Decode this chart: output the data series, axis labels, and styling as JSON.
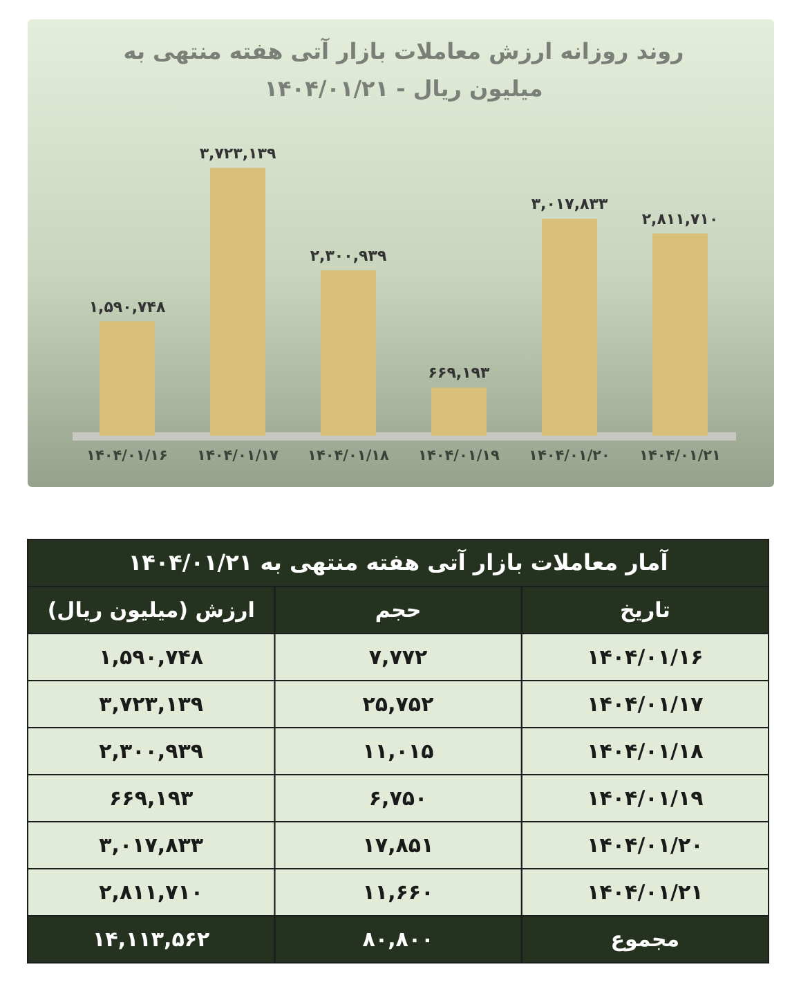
{
  "chart_data": [
    {
      "type": "bar",
      "title": "روند روزانه ارزش معاملات بازار آتی هفته منتهی به ۱۴۰۴/۰۱/۲۱ - میلیون ریال",
      "categories": [
        "۱۴۰۴/۰۱/۱۶",
        "۱۴۰۴/۰۱/۱۷",
        "۱۴۰۴/۰۱/۱۸",
        "۱۴۰۴/۰۱/۱۹",
        "۱۴۰۴/۰۱/۲۰",
        "۱۴۰۴/۰۱/۲۱"
      ],
      "values": [
        1590748,
        3723139,
        2300939,
        669193,
        3017833,
        2811710
      ],
      "value_labels": [
        "۱,۵۹۰,۷۴۸",
        "۳,۷۲۳,۱۳۹",
        "۲,۳۰۰,۹۳۹",
        "۶۶۹,۱۹۳",
        "۳,۰۱۷,۸۳۳",
        "۲,۸۱۱,۷۱۰"
      ],
      "color": "#d8c07a"
    },
    {
      "type": "other",
      "title": "آمار معاملات بازار آتی هفته منتهی به ۱۴۰۴/۰۱/۲۱",
      "xlabel": "تاریخ",
      "categories": [
        "۱۴۰۴/۰۱/۱۶",
        "۱۴۰۴/۰۱/۱۷",
        "۱۴۰۴/۰۱/۱۸",
        "۱۴۰۴/۰۱/۱۹",
        "۱۴۰۴/۰۱/۲۰",
        "۱۴۰۴/۰۱/۲۱"
      ],
      "series": [
        {
          "name": "حجم",
          "values": [
            7772,
            25752,
            11015,
            6750,
            17851,
            11660
          ],
          "value_labels": [
            "۷,۷۷۲",
            "۲۵,۷۵۲",
            "۱۱,۰۱۵",
            "۶,۷۵۰",
            "۱۷,۸۵۱",
            "۱۱,۶۶۰"
          ]
        },
        {
          "name": "ارزش (میلیون ریال)",
          "values": [
            1590748,
            3723139,
            2300939,
            669193,
            3017833,
            2811710
          ],
          "value_labels": [
            "۱,۵۹۰,۷۴۸",
            "۳,۷۲۳,۱۳۹",
            "۲,۳۰۰,۹۳۹",
            "۶۶۹,۱۹۳",
            "۳,۰۱۷,۸۳۳",
            "۲,۸۱۱,۷۱۰"
          ]
        }
      ],
      "totals": [
        "۸۰,۸۰۰",
        "۱۴,۱۱۳,۵۶۲"
      ],
      "annotations": [
        "مجموع"
      ]
    }
  ]
}
